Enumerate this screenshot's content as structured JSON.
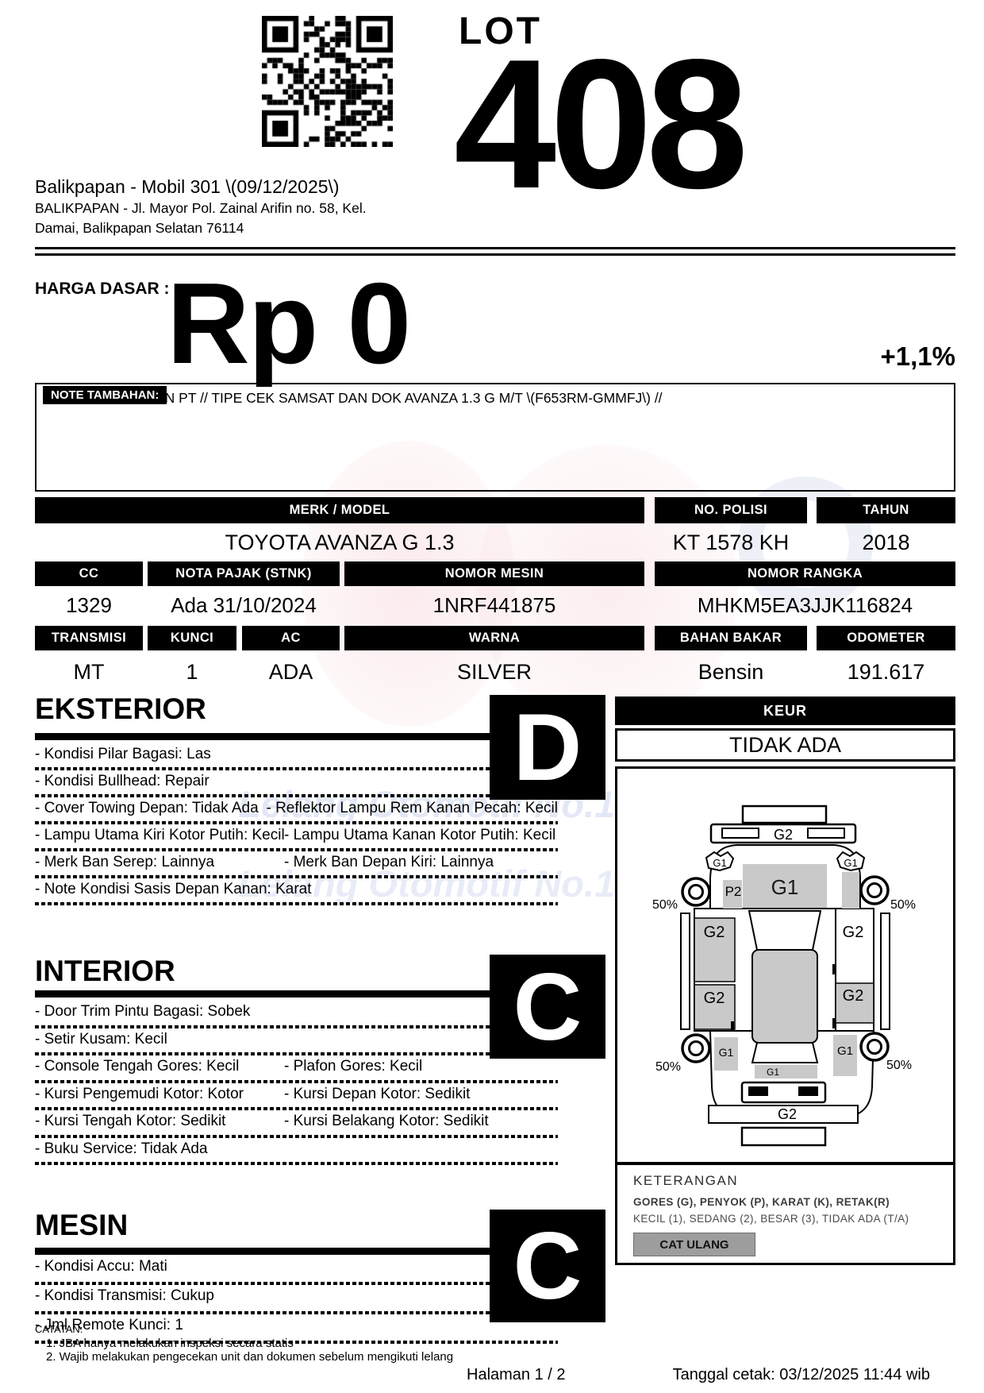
{
  "header": {
    "lot_label": "LOT",
    "lot_number": "408",
    "auction_title": "Balikpapan - Mobil 301 \\(09/12/2025\\)",
    "address_line1": "BALIKPAPAN - Jl. Mayor Pol. Zainal Arifin no. 58, Kel.",
    "address_line2": "Damai, Balikpapan Selatan 76114"
  },
  "price": {
    "label": "HARGA DASAR :",
    "value": "Rp 0",
    "increment": "+1,1%"
  },
  "note": {
    "label": "NOTE TAMBAHAN:",
    "text": "AN PT // TIPE CEK SAMSAT DAN DOK AVANZA 1.3 G M/T \\(F653RM-GMMFJ\\) //"
  },
  "vehicle": {
    "merk_model": {
      "label": "MERK / MODEL",
      "value": "TOYOTA AVANZA G 1.3"
    },
    "no_polisi": {
      "label": "NO. POLISI",
      "value": "KT 1578 KH"
    },
    "tahun": {
      "label": "TAHUN",
      "value": "2018"
    },
    "cc": {
      "label": "CC",
      "value": "1329"
    },
    "nota_pajak": {
      "label": "NOTA PAJAK (STNK)",
      "value": "Ada 31/10/2024"
    },
    "nomor_mesin": {
      "label": "NOMOR MESIN",
      "value": "1NRF441875"
    },
    "nomor_rangka": {
      "label": "NOMOR RANGKA",
      "value": "MHKM5EA3JJK116824"
    },
    "transmisi": {
      "label": "TRANSMISI",
      "value": "MT"
    },
    "kunci": {
      "label": "KUNCI",
      "value": "1"
    },
    "ac": {
      "label": "AC",
      "value": "ADA"
    },
    "warna": {
      "label": "WARNA",
      "value": "SILVER"
    },
    "bahan_bakar": {
      "label": "BAHAN BAKAR",
      "value": "Bensin"
    },
    "odometer": {
      "label": "ODOMETER",
      "value": "191.617"
    }
  },
  "keur": {
    "label": "KEUR",
    "value": "TIDAK ADA"
  },
  "sections": {
    "eksterior": {
      "title": "EKSTERIOR",
      "grade": "D",
      "rows": [
        {
          "left": "- Kondisi Pilar Bagasi: Las",
          "right": ""
        },
        {
          "left": "- Kondisi Bullhead: Repair",
          "right": ""
        },
        {
          "left": "- Cover Towing Depan: Tidak Ada",
          "right": "- Reflektor Lampu Rem Kanan Pecah: Kecil"
        },
        {
          "left": "- Lampu Utama Kiri Kotor Putih: Kecil",
          "right": "- Lampu Utama Kanan Kotor Putih: Kecil"
        },
        {
          "left": "- Merk Ban Serep: Lainnya",
          "right": "- Merk Ban Depan Kiri: Lainnya"
        },
        {
          "left": "- Note Kondisi Sasis Depan Kanan: Karat",
          "right": ""
        }
      ]
    },
    "interior": {
      "title": "INTERIOR",
      "grade": "C",
      "rows": [
        {
          "left": "- Door Trim Pintu Bagasi: Sobek",
          "right": ""
        },
        {
          "left": "- Setir Kusam: Kecil",
          "right": ""
        },
        {
          "left": "- Console Tengah Gores: Kecil",
          "right": "- Plafon Gores: Kecil"
        },
        {
          "left": "- Kursi Pengemudi Kotor: Kotor",
          "right": "- Kursi Depan Kotor: Sedikit"
        },
        {
          "left": "- Kursi Tengah Kotor: Sedikit",
          "right": "- Kursi Belakang Kotor: Sedikit"
        },
        {
          "left": "- Buku Service: Tidak Ada",
          "right": ""
        }
      ]
    },
    "mesin": {
      "title": "MESIN",
      "grade": "C",
      "rows": [
        {
          "left": "- Kondisi Accu: Mati",
          "right": ""
        },
        {
          "left": "- Kondisi Transmisi: Cukup",
          "right": ""
        },
        {
          "left": "- Jml Remote Kunci: 1",
          "right": ""
        }
      ]
    }
  },
  "diagram": {
    "front_bumper": "G2",
    "hood": "G1",
    "left_mirror": "G1",
    "right_mirror": "G1",
    "left_front_fender": "P2",
    "left_front_wheel": "50%",
    "right_front_wheel": "50%",
    "left_front_door": "G2",
    "right_front_door": "G2",
    "left_rear_door": "G2",
    "right_rear_door": "G2",
    "left_rear_fender": "G1",
    "right_rear_fender": "G1",
    "left_rear_wheel": "50%",
    "right_rear_wheel": "50%",
    "tailgate": "G1",
    "rear_bumper": "G2"
  },
  "keterangan": {
    "title": "KETERANGAN",
    "line1": "GORES (G), PENYOK (P), KARAT (K), RETAK(R)",
    "line2": "KECIL (1), SEDANG (2), BESAR (3), TIDAK ADA (T/A)",
    "cat_ulang": "CAT ULANG"
  },
  "footer": {
    "catatan_label": "CATATAN:",
    "note1": "1. JBA hanya melakukan inspeksi secara statis",
    "note2": "2. Wajib melakukan pengecekan unit dan dokumen sebelum mengikuti lelang",
    "page": "Halaman 1 / 2",
    "printed": "Tanggal cetak: 03/12/2025 11:44 wib"
  },
  "watermark": {
    "line1": "Lelang Otomotif No.1",
    "line2": "Lelang Otomotif No.1"
  }
}
